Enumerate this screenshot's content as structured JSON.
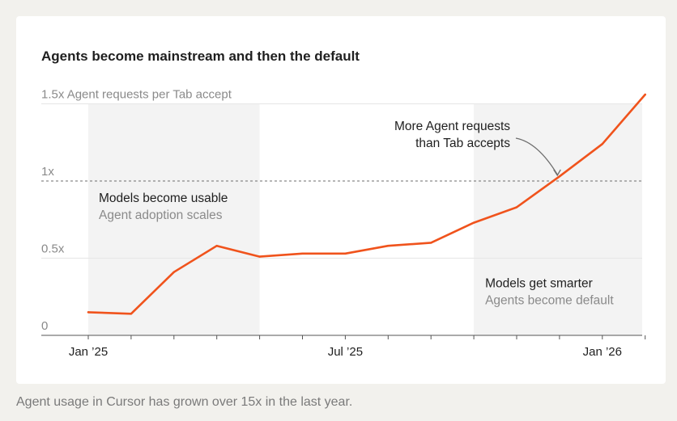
{
  "chart_data": {
    "type": "line",
    "title": "Agents become mainstream and then the default",
    "ylabel": "Agent requests per Tab accept",
    "ylim": [
      0,
      1.5
    ],
    "yticks": [
      {
        "value": 0,
        "label": "0"
      },
      {
        "value": 0.5,
        "label": "0.5x"
      },
      {
        "value": 1,
        "label": "1x"
      },
      {
        "value": 1.5,
        "label": "1.5x"
      }
    ],
    "xticks": [
      {
        "index": 0,
        "label": "Jan ’25"
      },
      {
        "index": 6,
        "label": "Jul ’25"
      },
      {
        "index": 12,
        "label": "Jan ’26"
      }
    ],
    "x": [
      "2025-01",
      "2025-02",
      "2025-03",
      "2025-04",
      "2025-05",
      "2025-06",
      "2025-07",
      "2025-08",
      "2025-09",
      "2025-10",
      "2025-11",
      "2025-12",
      "2026-01",
      "2026-02"
    ],
    "series": [
      {
        "values": [
          0.15,
          0.14,
          0.41,
          0.58,
          0.51,
          0.53,
          0.53,
          0.58,
          0.6,
          0.73,
          0.83,
          1.03,
          1.24,
          1.56
        ],
        "color": "#f0531c"
      }
    ],
    "reference_line": {
      "value": 1
    },
    "shaded_regions": [
      {
        "from_index": 0,
        "to_index": 4,
        "label": "Models become usable",
        "sublabel": "Agent adoption scales"
      },
      {
        "from_index": 9,
        "to_index": 13,
        "label": "Models get smarter",
        "sublabel": "Agents become default"
      }
    ],
    "annotation": {
      "lines": [
        "More Agent requests",
        "than Tab accepts"
      ],
      "target_index": 10.95,
      "target_value": 1.0
    },
    "grid": true,
    "legend": "none"
  },
  "caption": "Agent usage in Cursor has grown over 15x in the last year.",
  "colors": {
    "line": "#f0531c",
    "shading": "#f3f3f3",
    "grid": "#e6e6e6",
    "axis_text": "#8a8a8a"
  }
}
